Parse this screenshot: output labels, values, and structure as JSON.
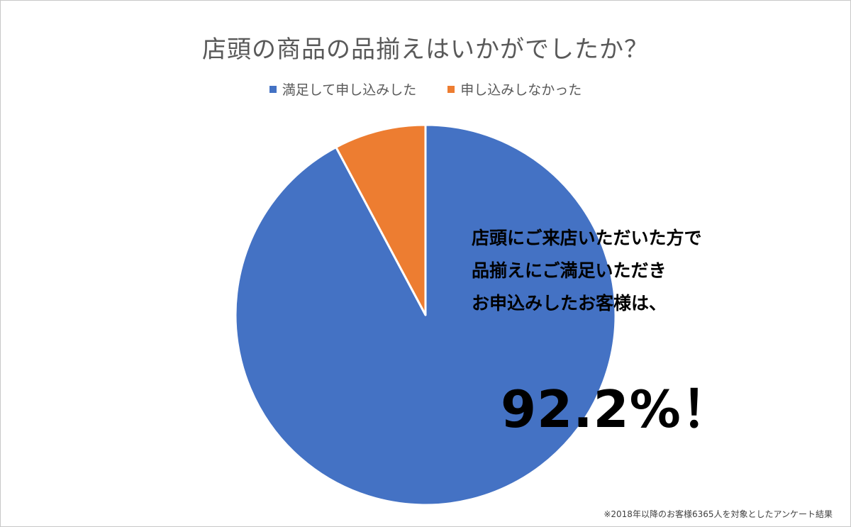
{
  "chart_data": {
    "type": "pie",
    "title": "店頭の商品の品揃えはいかがでしたか？",
    "categories": [
      "満足して申し込みした",
      "申し込みしなかった"
    ],
    "values": [
      92.2,
      7.8
    ],
    "colors": [
      "#4472c4",
      "#ed7d31"
    ],
    "legend_position": "top",
    "start_angle_deg": 0,
    "direction": "clockwise"
  },
  "annotation": {
    "lines": [
      "店頭にご来店いただいた方で",
      "品揃えにご満足いただき",
      "お申込みしたお客様は、"
    ],
    "highlight": "92.2%！"
  },
  "footnote": "※2018年以降のお客様6365人を対象としたアンケート結果"
}
